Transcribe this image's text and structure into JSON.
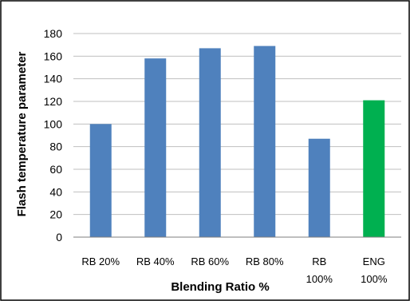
{
  "chart_data": {
    "type": "bar",
    "title": "",
    "xlabel": "Blending Ratio %",
    "ylabel": "Flash temperature parameter",
    "categories": [
      [
        "RB 20%"
      ],
      [
        "RB 40%"
      ],
      [
        "RB 60%"
      ],
      [
        "RB 80%"
      ],
      [
        "RB",
        "100%"
      ],
      [
        "ENG",
        "100%"
      ]
    ],
    "values": [
      100,
      158,
      167,
      169,
      87,
      121
    ],
    "bar_colors": [
      "#4f81bd",
      "#4f81bd",
      "#4f81bd",
      "#4f81bd",
      "#4f81bd",
      "#00b050"
    ],
    "ylim": [
      0,
      180
    ],
    "yticks": [
      0,
      20,
      40,
      60,
      80,
      100,
      120,
      140,
      160,
      180
    ],
    "grid": true,
    "legend": "none"
  },
  "colors": {
    "grid": "#bfbfbf",
    "border": "#000000"
  }
}
